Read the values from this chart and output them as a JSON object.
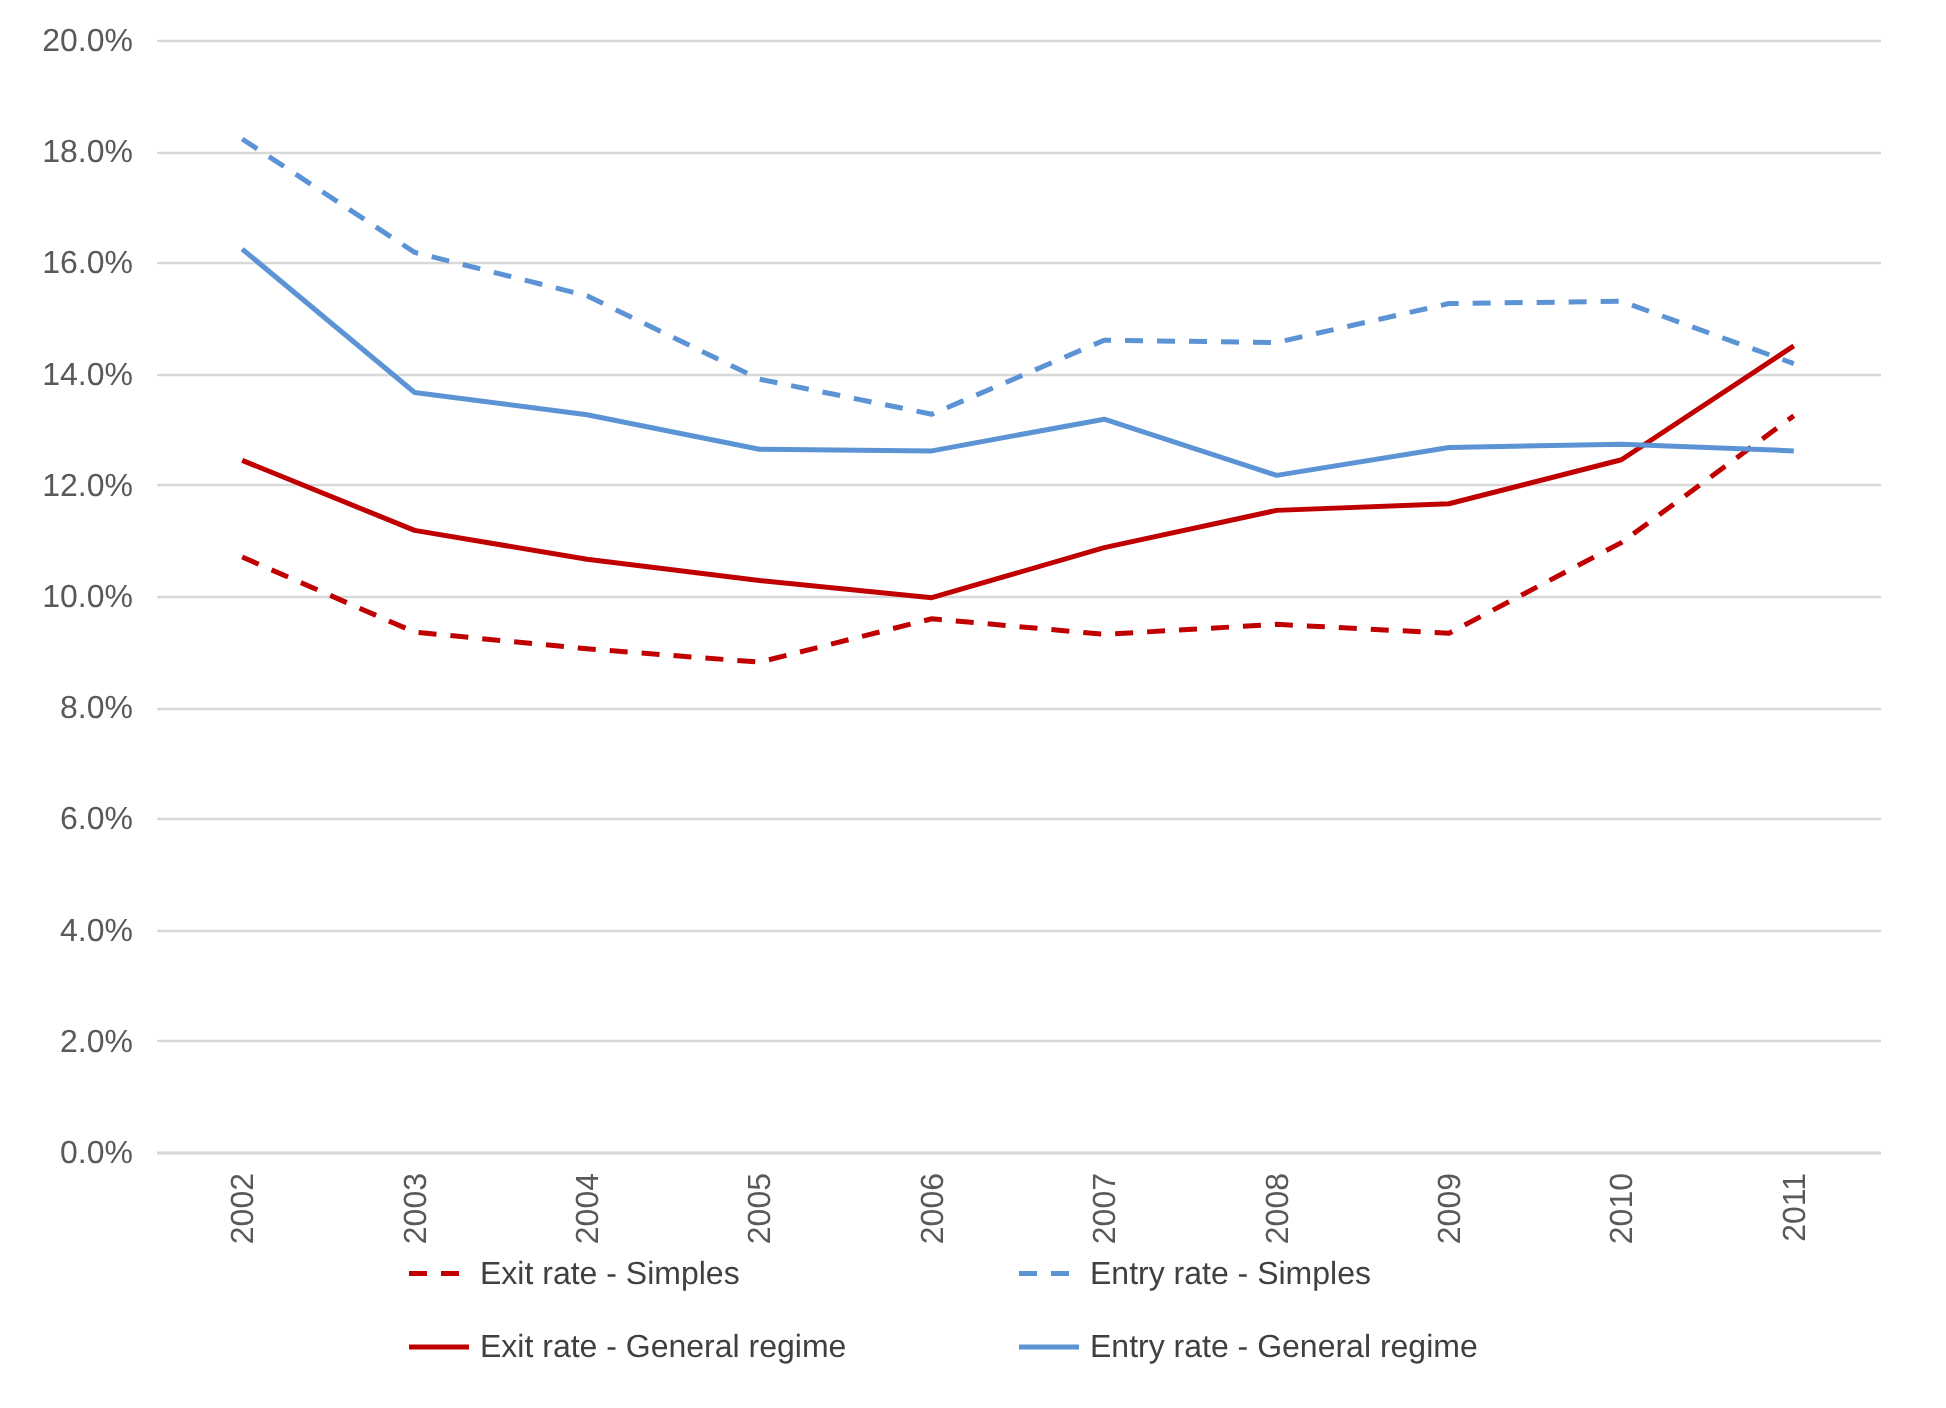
{
  "chart_data": {
    "type": "line",
    "categories": [
      "2002",
      "2003",
      "2004",
      "2005",
      "2006",
      "2007",
      "2008",
      "2009",
      "2010",
      "2011"
    ],
    "series": [
      {
        "name": "Exit rate - Simples",
        "color": "#c00000",
        "line_style": "dashed",
        "values": [
          10.7,
          9.35,
          9.05,
          8.81,
          9.59,
          9.31,
          9.49,
          9.33,
          10.96,
          13.24
        ]
      },
      {
        "name": "Exit rate - General regime",
        "color": "#c00000",
        "line_style": "solid",
        "values": [
          12.44,
          11.18,
          10.66,
          10.28,
          9.97,
          10.87,
          11.54,
          11.66,
          12.45,
          14.5
        ]
      },
      {
        "name": "Entry rate - Simples",
        "color": "#5b93d5",
        "line_style": "dashed",
        "values": [
          18.22,
          16.18,
          15.4,
          13.9,
          13.27,
          14.6,
          14.56,
          15.26,
          15.3,
          14.18
        ]
      },
      {
        "name": "Entry rate - General regime",
        "color": "#5b93d5",
        "line_style": "solid",
        "values": [
          16.24,
          13.66,
          13.26,
          12.64,
          12.61,
          13.18,
          12.17,
          12.67,
          12.73,
          12.61
        ]
      }
    ],
    "ylim": [
      0,
      20
    ],
    "yticks": [
      {
        "value": 0,
        "label": "0.0%"
      },
      {
        "value": 2,
        "label": "2.0%"
      },
      {
        "value": 4,
        "label": "4.0%"
      },
      {
        "value": 6,
        "label": "6.0%"
      },
      {
        "value": 8,
        "label": "8.0%"
      },
      {
        "value": 10,
        "label": "10.0%"
      },
      {
        "value": 12,
        "label": "12.0%"
      },
      {
        "value": 14,
        "label": "14.0%"
      },
      {
        "value": 16,
        "label": "16.0%"
      },
      {
        "value": 18,
        "label": "18.0%"
      },
      {
        "value": 20,
        "label": "20.0%"
      }
    ],
    "grid": "y",
    "legend": "bottom",
    "marker": "none"
  }
}
